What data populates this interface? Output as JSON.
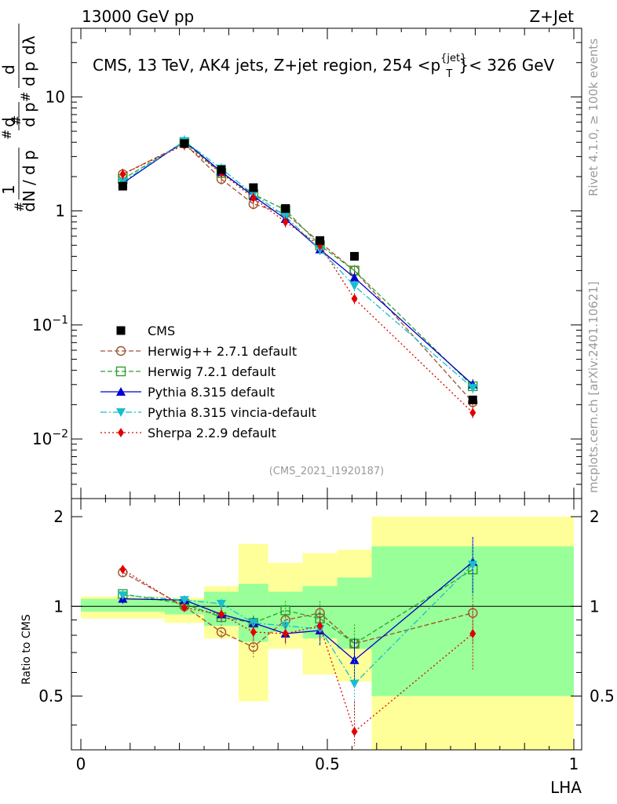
{
  "header": {
    "left": "13000 GeV pp",
    "right": "Z+Jet"
  },
  "plot_title": "CMS, 13 TeV, AK4 jets, Z+jet region, 254 <p",
  "plot_title_sup": "{jet}",
  "plot_title_sub": "T",
  "plot_title_end": "}< 326 GeV",
  "side_labels": {
    "rivet": "Rivet 4.1.0, ≥ 100k events",
    "mcplots": "mcplots.cern.ch [arXiv:2401.10621]"
  },
  "analysis_id": "(CMS_2021_I1920187)",
  "ylabel_main": "1/N dN/dpT ... d²N / dpT dλ",
  "ylabel_ratio": "Ratio to CMS",
  "xlabel": "LHA",
  "main_ticks": [
    {
      "v": 0.01,
      "base": "10",
      "exp": "−2"
    },
    {
      "v": 0.1,
      "base": "10",
      "exp": "−1"
    },
    {
      "v": 1,
      "base": "1",
      "exp": ""
    },
    {
      "v": 10,
      "base": "10",
      "exp": ""
    }
  ],
  "ratio_ticks": [
    "0.5",
    "1",
    "2"
  ],
  "x_ticks": [
    "0",
    "0.5",
    "1"
  ],
  "colors": {
    "cms": "#000000",
    "herwigpp": "#a0522d",
    "herwig7": "#2ca02c",
    "pythia": "#0000cc",
    "vincia": "#17becf",
    "sherpa": "#e00000",
    "band_inner": "#99ff99",
    "band_outer": "#ffff99"
  },
  "chart_data": {
    "type": "scatter",
    "x": [
      0.085,
      0.21,
      0.285,
      0.35,
      0.415,
      0.485,
      0.555,
      0.795
    ],
    "xlim": [
      0,
      1
    ],
    "ylim_main": [
      0.003,
      40
    ],
    "yscale_main": "log",
    "ylim_ratio": [
      0.33,
      2.3
    ],
    "yscale_ratio": "log",
    "cms": {
      "name": "CMS",
      "values": [
        1.65,
        3.9,
        2.3,
        1.6,
        1.05,
        0.55,
        0.4,
        0.022
      ]
    },
    "bands": [
      {
        "x0": 0.0,
        "x1": 0.17,
        "in_lo": 0.96,
        "in_hi": 1.06,
        "out_lo": 0.91,
        "out_hi": 1.08
      },
      {
        "x0": 0.17,
        "x1": 0.25,
        "in_lo": 0.94,
        "in_hi": 1.05,
        "out_lo": 0.88,
        "out_hi": 1.07
      },
      {
        "x0": 0.25,
        "x1": 0.32,
        "in_lo": 0.86,
        "in_hi": 1.12,
        "out_lo": 0.78,
        "out_hi": 1.17
      },
      {
        "x0": 0.32,
        "x1": 0.38,
        "in_lo": 0.76,
        "in_hi": 1.19,
        "out_lo": 0.48,
        "out_hi": 1.62
      },
      {
        "x0": 0.38,
        "x1": 0.45,
        "in_lo": 0.82,
        "in_hi": 1.12,
        "out_lo": 0.72,
        "out_hi": 1.4
      },
      {
        "x0": 0.45,
        "x1": 0.52,
        "in_lo": 0.78,
        "in_hi": 1.17,
        "out_lo": 0.59,
        "out_hi": 1.51
      },
      {
        "x0": 0.52,
        "x1": 0.59,
        "in_lo": 0.72,
        "in_hi": 1.25,
        "out_lo": 0.56,
        "out_hi": 1.55
      },
      {
        "x0": 0.59,
        "x1": 1.0,
        "in_lo": 0.5,
        "in_hi": 1.59,
        "out_lo": 0.33,
        "out_hi": 2.0
      }
    ],
    "series": [
      {
        "name": "Herwig++ 2.7.1 default",
        "key": "herwigpp",
        "marker": "circle-open",
        "dash": "6,3",
        "values": [
          2.1,
          3.9,
          1.9,
          1.15,
          0.95,
          0.53,
          0.3,
          0.021
        ],
        "ratio": [
          1.3,
          1.0,
          0.82,
          0.73,
          0.9,
          0.95,
          0.75,
          0.95
        ],
        "rerr": [
          0.04,
          0.03,
          0.05,
          0.06,
          0.07,
          0.09,
          0.1,
          0.2
        ]
      },
      {
        "name": "Herwig 7.2.1 default",
        "key": "herwig7",
        "marker": "square-open",
        "dash": "6,3",
        "values": [
          1.9,
          4.0,
          2.15,
          1.4,
          1.02,
          0.5,
          0.3,
          0.029
        ],
        "ratio": [
          1.1,
          1.02,
          0.92,
          0.88,
          0.97,
          0.91,
          0.75,
          1.33
        ],
        "rerr": [
          0.04,
          0.03,
          0.04,
          0.05,
          0.07,
          0.09,
          0.12,
          0.28
        ]
      },
      {
        "name": "Pythia 8.315 default",
        "key": "pythia",
        "marker": "triangle-up",
        "dash": "",
        "values": [
          1.75,
          4.1,
          2.2,
          1.35,
          0.85,
          0.46,
          0.26,
          0.03
        ],
        "ratio": [
          1.06,
          1.05,
          0.94,
          0.88,
          0.81,
          0.83,
          0.66,
          1.41
        ],
        "rerr": [
          0.04,
          0.03,
          0.04,
          0.05,
          0.06,
          0.09,
          0.12,
          0.3
        ]
      },
      {
        "name": "Pythia 8.315 vincia-default",
        "key": "vincia",
        "marker": "triangle-down",
        "dash": "8,3,2,3",
        "values": [
          1.8,
          4.1,
          2.35,
          1.4,
          0.9,
          0.46,
          0.22,
          0.028
        ],
        "ratio": [
          1.09,
          1.05,
          1.02,
          0.88,
          0.86,
          0.84,
          0.55,
          1.38
        ],
        "rerr": [
          0.04,
          0.03,
          0.04,
          0.05,
          0.06,
          0.09,
          0.12,
          0.3
        ]
      },
      {
        "name": "Sherpa 2.2.9 default",
        "key": "sherpa",
        "marker": "diamond",
        "dash": "2,3",
        "values": [
          2.1,
          3.8,
          2.15,
          1.3,
          0.8,
          0.5,
          0.17,
          0.017
        ],
        "ratio": [
          1.33,
          0.99,
          0.94,
          0.82,
          0.81,
          0.86,
          0.38,
          0.81
        ],
        "rerr": [
          0.04,
          0.03,
          0.05,
          0.06,
          0.07,
          0.09,
          0.1,
          0.2
        ]
      }
    ]
  }
}
